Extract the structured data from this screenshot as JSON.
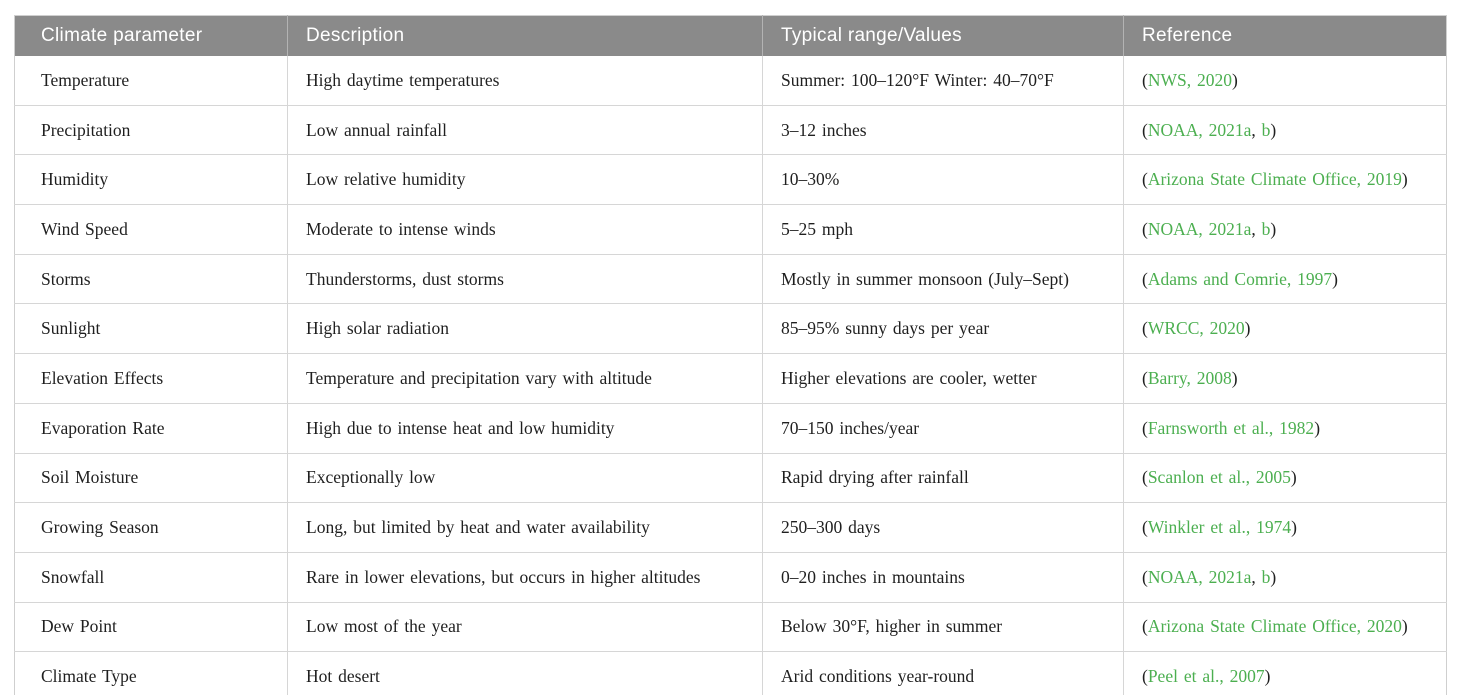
{
  "colors": {
    "header_bg": "#8a8a8a",
    "header_text": "#ffffff",
    "header_divider": "#b3b3b3",
    "border": "#d6d6d6",
    "body_text": "#1f1f1f",
    "link_green": "#4caf50"
  },
  "table": {
    "headers": [
      "Climate parameter",
      "Description",
      "Typical range/Values",
      "Reference"
    ],
    "rows": [
      {
        "parameter": "Temperature",
        "description": "High daytime temperatures",
        "range": "Summer: 100–120°F Winter: 40–70°F",
        "reference": [
          {
            "t": "(",
            "link": false
          },
          {
            "t": "NWS, 2020",
            "link": true
          },
          {
            "t": ")",
            "link": false
          }
        ]
      },
      {
        "parameter": "Precipitation",
        "description": "Low annual rainfall",
        "range": "3–12 inches",
        "reference": [
          {
            "t": "(",
            "link": false
          },
          {
            "t": "NOAA, 2021a",
            "link": true
          },
          {
            "t": ", ",
            "link": false
          },
          {
            "t": "b",
            "link": true
          },
          {
            "t": ")",
            "link": false
          }
        ]
      },
      {
        "parameter": "Humidity",
        "description": "Low relative humidity",
        "range": "10–30%",
        "reference": [
          {
            "t": "(",
            "link": false
          },
          {
            "t": "Arizona State Climate Office, 2019",
            "link": true
          },
          {
            "t": ")",
            "link": false
          }
        ]
      },
      {
        "parameter": "Wind Speed",
        "description": "Moderate to intense winds",
        "range": "5–25 mph",
        "reference": [
          {
            "t": "(",
            "link": false
          },
          {
            "t": "NOAA, 2021a",
            "link": true
          },
          {
            "t": ", ",
            "link": false
          },
          {
            "t": "b",
            "link": true
          },
          {
            "t": ")",
            "link": false
          }
        ]
      },
      {
        "parameter": "Storms",
        "description": "Thunderstorms, dust storms",
        "range": "Mostly in summer monsoon (July–Sept)",
        "reference": [
          {
            "t": "(",
            "link": false
          },
          {
            "t": "Adams and Comrie, 1997",
            "link": true
          },
          {
            "t": ")",
            "link": false
          }
        ]
      },
      {
        "parameter": "Sunlight",
        "description": "High solar radiation",
        "range": "85–95% sunny days per year",
        "reference": [
          {
            "t": "(",
            "link": false
          },
          {
            "t": "WRCC, 2020",
            "link": true
          },
          {
            "t": ")",
            "link": false
          }
        ]
      },
      {
        "parameter": "Elevation Effects",
        "description": "Temperature and precipitation vary with altitude",
        "range": "Higher elevations are cooler, wetter",
        "reference": [
          {
            "t": "(",
            "link": false
          },
          {
            "t": "Barry, 2008",
            "link": true
          },
          {
            "t": ")",
            "link": false
          }
        ]
      },
      {
        "parameter": "Evaporation Rate",
        "description": "High due to intense heat and low humidity",
        "range": "70–150 inches/year",
        "reference": [
          {
            "t": "(",
            "link": false
          },
          {
            "t": "Farnsworth et al., 1982",
            "link": true
          },
          {
            "t": ")",
            "link": false
          }
        ]
      },
      {
        "parameter": "Soil Moisture",
        "description": "Exceptionally low",
        "range": "Rapid drying after rainfall",
        "reference": [
          {
            "t": "(",
            "link": false
          },
          {
            "t": "Scanlon et al., 2005",
            "link": true
          },
          {
            "t": ")",
            "link": false
          }
        ]
      },
      {
        "parameter": "Growing Season",
        "description": "Long, but limited by heat and water availability",
        "range": "250–300 days",
        "reference": [
          {
            "t": "(",
            "link": false
          },
          {
            "t": "Winkler et al., 1974",
            "link": true
          },
          {
            "t": ")",
            "link": false
          }
        ]
      },
      {
        "parameter": "Snowfall",
        "description": "Rare in lower elevations, but occurs in higher altitudes",
        "range": "0–20 inches in mountains",
        "reference": [
          {
            "t": "(",
            "link": false
          },
          {
            "t": "NOAA, 2021a",
            "link": true
          },
          {
            "t": ", ",
            "link": false
          },
          {
            "t": "b",
            "link": true
          },
          {
            "t": ")",
            "link": false
          }
        ]
      },
      {
        "parameter": "Dew Point",
        "description": "Low most of the year",
        "range": "Below 30°F, higher in summer",
        "reference": [
          {
            "t": "(",
            "link": false
          },
          {
            "t": "Arizona State Climate Office, 2020",
            "link": true
          },
          {
            "t": ")",
            "link": false
          }
        ]
      },
      {
        "parameter": "Climate Type",
        "description": "Hot desert",
        "range": "Arid conditions year-round",
        "reference": [
          {
            "t": "(",
            "link": false
          },
          {
            "t": "Peel et al., 2007",
            "link": true
          },
          {
            "t": ")",
            "link": false
          }
        ]
      }
    ]
  }
}
